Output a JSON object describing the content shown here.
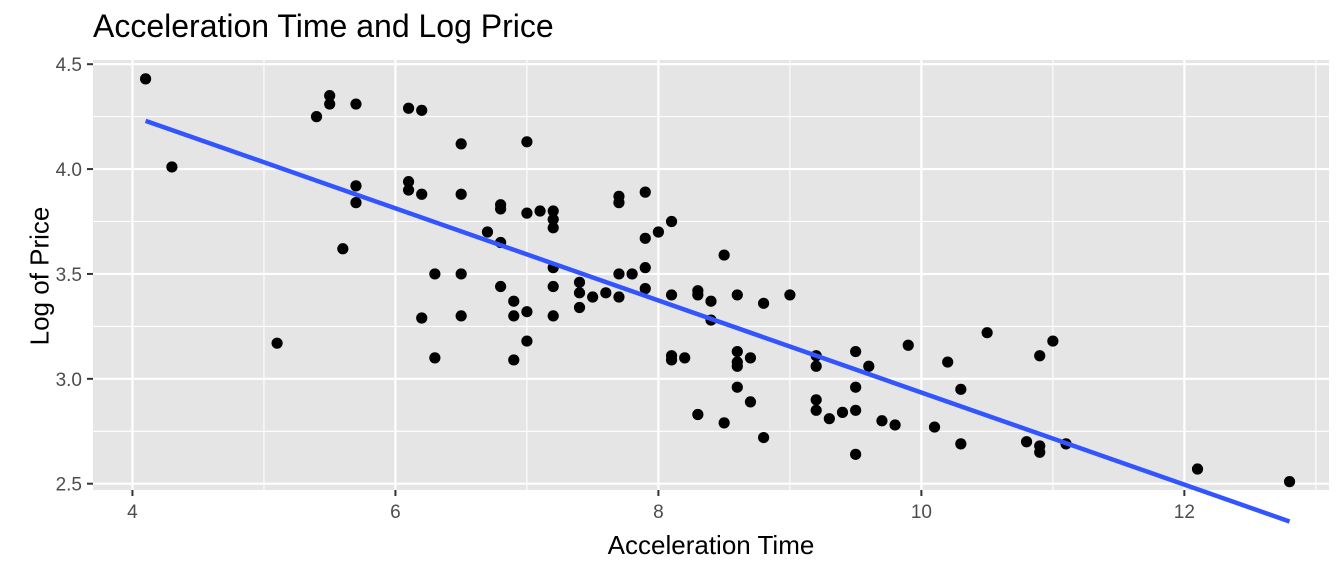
{
  "chart_data": {
    "type": "scatter",
    "title": "Acceleration Time and Log Price",
    "xlabel": "Acceleration Time",
    "ylabel": "Log of Price",
    "xlim": [
      3.7,
      13.1
    ],
    "ylim": [
      2.47,
      4.52
    ],
    "x_ticks": [
      4,
      6,
      8,
      10,
      12
    ],
    "x_tick_labels": [
      "4",
      "6",
      "8",
      "10",
      "12"
    ],
    "y_ticks": [
      2.5,
      3.0,
      3.5,
      4.0,
      4.5
    ],
    "y_tick_labels": [
      "2.5",
      "3.0",
      "3.5",
      "4.0",
      "4.5"
    ],
    "grid": true,
    "background": "#e5e5e5",
    "point_color": "#000000",
    "fit_line": {
      "color": "#3355ff",
      "x": [
        4.1,
        12.8
      ],
      "y": [
        4.23,
        2.32
      ]
    },
    "points": [
      [
        4.1,
        4.43
      ],
      [
        4.3,
        4.01
      ],
      [
        5.1,
        3.17
      ],
      [
        5.4,
        4.25
      ],
      [
        5.5,
        4.35
      ],
      [
        5.5,
        4.31
      ],
      [
        5.6,
        3.62
      ],
      [
        5.7,
        4.31
      ],
      [
        5.7,
        3.92
      ],
      [
        5.7,
        3.84
      ],
      [
        6.1,
        4.29
      ],
      [
        6.1,
        3.94
      ],
      [
        6.1,
        3.9
      ],
      [
        6.2,
        4.28
      ],
      [
        6.2,
        3.88
      ],
      [
        6.2,
        3.29
      ],
      [
        6.3,
        3.5
      ],
      [
        6.3,
        3.1
      ],
      [
        6.5,
        4.12
      ],
      [
        6.5,
        3.88
      ],
      [
        6.5,
        3.5
      ],
      [
        6.5,
        3.3
      ],
      [
        6.7,
        3.7
      ],
      [
        6.8,
        3.83
      ],
      [
        6.8,
        3.81
      ],
      [
        6.8,
        3.65
      ],
      [
        6.8,
        3.44
      ],
      [
        6.9,
        3.37
      ],
      [
        6.9,
        3.3
      ],
      [
        6.9,
        3.09
      ],
      [
        7.0,
        4.13
      ],
      [
        7.0,
        3.79
      ],
      [
        7.0,
        3.32
      ],
      [
        7.0,
        3.18
      ],
      [
        7.1,
        3.8
      ],
      [
        7.2,
        3.8
      ],
      [
        7.2,
        3.76
      ],
      [
        7.2,
        3.72
      ],
      [
        7.2,
        3.53
      ],
      [
        7.2,
        3.44
      ],
      [
        7.2,
        3.3
      ],
      [
        7.4,
        3.46
      ],
      [
        7.4,
        3.41
      ],
      [
        7.4,
        3.34
      ],
      [
        7.5,
        3.39
      ],
      [
        7.6,
        3.41
      ],
      [
        7.7,
        3.87
      ],
      [
        7.7,
        3.84
      ],
      [
        7.7,
        3.5
      ],
      [
        7.7,
        3.39
      ],
      [
        7.8,
        3.5
      ],
      [
        7.9,
        3.89
      ],
      [
        7.9,
        3.67
      ],
      [
        7.9,
        3.53
      ],
      [
        7.9,
        3.43
      ],
      [
        8.0,
        3.7
      ],
      [
        8.1,
        3.75
      ],
      [
        8.1,
        3.4
      ],
      [
        8.1,
        3.11
      ],
      [
        8.1,
        3.09
      ],
      [
        8.2,
        3.1
      ],
      [
        8.3,
        3.42
      ],
      [
        8.3,
        3.4
      ],
      [
        8.3,
        2.83
      ],
      [
        8.4,
        3.37
      ],
      [
        8.4,
        3.28
      ],
      [
        8.5,
        3.59
      ],
      [
        8.5,
        2.79
      ],
      [
        8.6,
        3.4
      ],
      [
        8.6,
        3.13
      ],
      [
        8.6,
        3.08
      ],
      [
        8.6,
        3.06
      ],
      [
        8.6,
        2.96
      ],
      [
        8.7,
        3.1
      ],
      [
        8.7,
        2.89
      ],
      [
        8.8,
        3.36
      ],
      [
        8.8,
        2.72
      ],
      [
        9.0,
        3.4
      ],
      [
        9.2,
        3.11
      ],
      [
        9.2,
        3.06
      ],
      [
        9.2,
        2.9
      ],
      [
        9.2,
        2.85
      ],
      [
        9.3,
        2.81
      ],
      [
        9.4,
        2.84
      ],
      [
        9.5,
        3.13
      ],
      [
        9.5,
        2.96
      ],
      [
        9.5,
        2.85
      ],
      [
        9.5,
        2.64
      ],
      [
        9.6,
        3.06
      ],
      [
        9.7,
        2.8
      ],
      [
        9.8,
        2.78
      ],
      [
        9.9,
        3.16
      ],
      [
        10.1,
        2.77
      ],
      [
        10.2,
        3.08
      ],
      [
        10.3,
        2.95
      ],
      [
        10.3,
        2.69
      ],
      [
        10.5,
        3.22
      ],
      [
        10.8,
        2.7
      ],
      [
        10.9,
        3.11
      ],
      [
        10.9,
        2.68
      ],
      [
        10.9,
        2.65
      ],
      [
        11.0,
        3.18
      ],
      [
        11.1,
        2.69
      ],
      [
        12.1,
        2.57
      ],
      [
        12.8,
        2.51
      ]
    ]
  }
}
